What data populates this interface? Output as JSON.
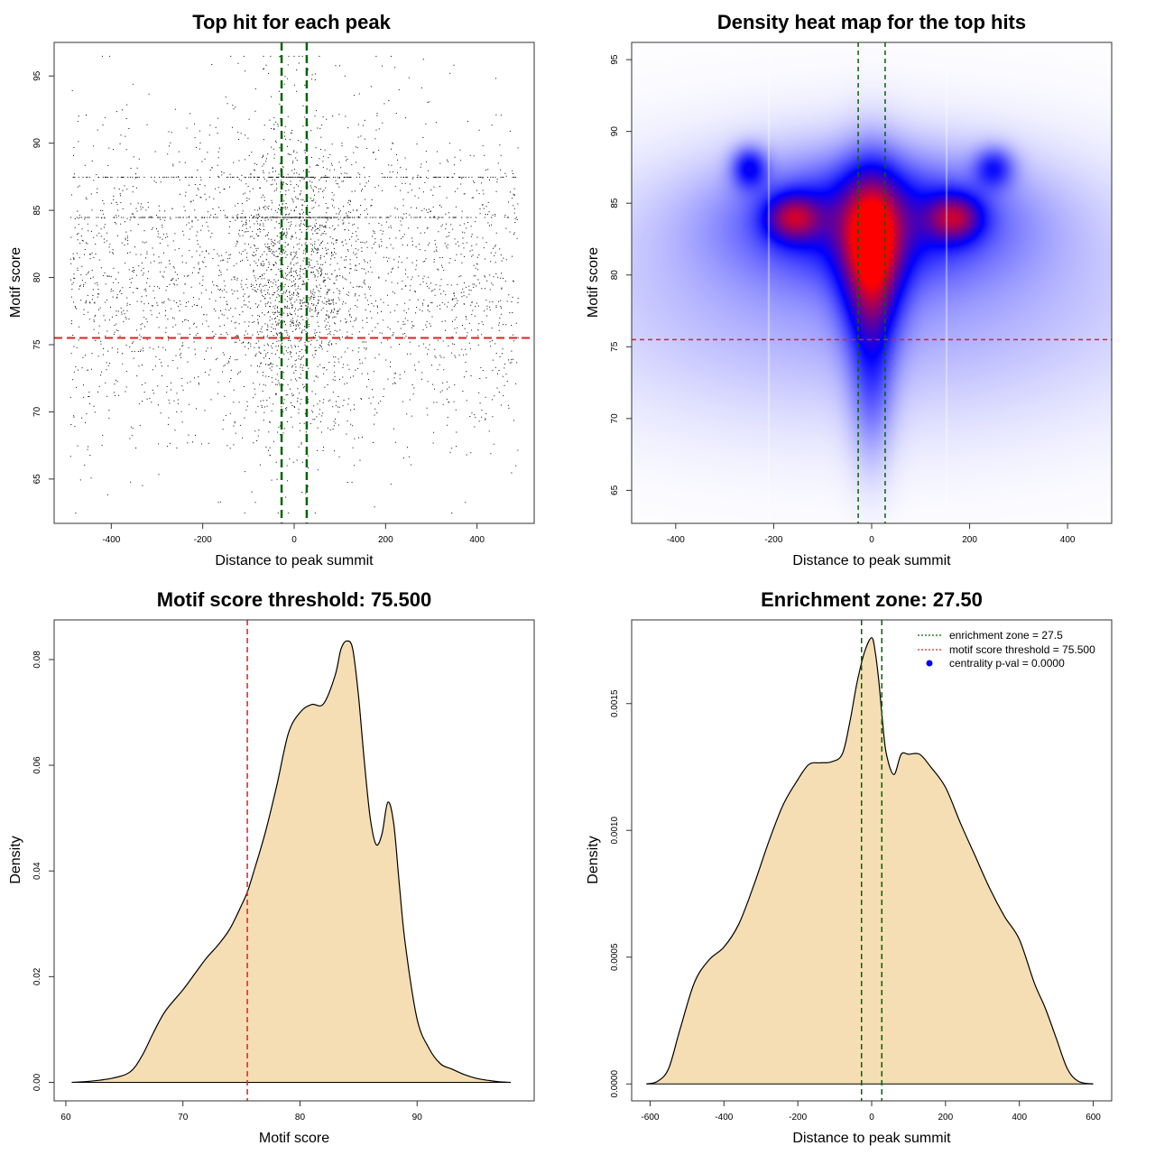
{
  "colors": {
    "threshold_red": "#e02020",
    "zone_green": "#006400",
    "density_fill": "#f5deb3",
    "heat_low": "#ffffff",
    "heat_mid": "#0000ff",
    "heat_high": "#ff0000",
    "pval_blue": "#0000ff"
  },
  "chart_data": [
    {
      "id": "scatter",
      "type": "scatter",
      "title": "Top hit for each peak",
      "xlabel": "Distance to peak summit",
      "ylabel": "Motif score",
      "xlim": [
        -525,
        525
      ],
      "ylim": [
        61.7,
        97.5
      ],
      "xticks": [
        -400,
        -200,
        0,
        200,
        400
      ],
      "yticks": [
        65,
        70,
        75,
        80,
        85,
        90,
        95
      ],
      "threshold_y": 75.5,
      "zone": [
        -27.5,
        27.5
      ],
      "n_points": 4200,
      "x_range": [
        -490,
        490
      ],
      "score_peaks": [
        84.5,
        87.5
      ],
      "score_mean": 80,
      "score_sd": 6
    },
    {
      "id": "heatmap",
      "type": "heatmap",
      "title": "Density heat map for the top hits",
      "xlabel": "Distance to peak summit",
      "ylabel": "Motif score",
      "xlim": [
        -490,
        490
      ],
      "ylim": [
        62.7,
        96.2
      ],
      "xticks": [
        -400,
        -200,
        0,
        200,
        400
      ],
      "yticks": [
        65,
        70,
        75,
        80,
        85,
        90,
        95
      ],
      "threshold_y": 75.5,
      "zone": [
        -27.5,
        27.5
      ],
      "hotspots": [
        {
          "x": 0,
          "y": 83.5,
          "value": 1.0
        },
        {
          "x": -160,
          "y": 84,
          "value": 0.8
        },
        {
          "x": 170,
          "y": 84,
          "value": 0.8
        },
        {
          "x": -250,
          "y": 87.5,
          "value": 0.6
        },
        {
          "x": 250,
          "y": 87.5,
          "value": 0.6
        }
      ]
    },
    {
      "id": "score_density",
      "type": "area",
      "title": "Motif score threshold: 75.500",
      "xlabel": "Motif score",
      "ylabel": "Density",
      "xlim": [
        59,
        100
      ],
      "ylim": [
        -0.0035,
        0.0875
      ],
      "xticks": [
        60,
        70,
        80,
        90
      ],
      "yticks": [
        0.0,
        0.02,
        0.04,
        0.06,
        0.08
      ],
      "ytick_labels": [
        "0.00",
        "0.02",
        "0.04",
        "0.06",
        "0.08"
      ],
      "threshold_x": 75.5,
      "x": [
        60.5,
        62,
        64,
        65.5,
        66.5,
        67.5,
        68.5,
        70,
        71,
        72,
        73,
        74,
        75,
        75.5,
        76,
        77,
        78,
        79,
        80,
        81,
        82,
        83,
        83.5,
        84,
        84.5,
        85,
        85.5,
        86,
        86.5,
        87,
        87.5,
        88,
        88.5,
        89,
        90,
        91,
        92,
        93,
        94,
        95,
        96,
        97,
        98
      ],
      "y": [
        0,
        0.0002,
        0.0008,
        0.002,
        0.005,
        0.0095,
        0.0135,
        0.0175,
        0.0205,
        0.0235,
        0.026,
        0.029,
        0.0335,
        0.036,
        0.0395,
        0.047,
        0.056,
        0.066,
        0.07,
        0.0715,
        0.0716,
        0.077,
        0.082,
        0.0835,
        0.082,
        0.073,
        0.0605,
        0.05,
        0.045,
        0.047,
        0.053,
        0.049,
        0.037,
        0.026,
        0.012,
        0.0065,
        0.0035,
        0.0025,
        0.0015,
        0.0008,
        0.0004,
        0.0001,
        0.0
      ]
    },
    {
      "id": "distance_density",
      "type": "area",
      "title": "Enrichment zone: 27.50",
      "xlabel": "Distance to peak summit",
      "ylabel": "Density",
      "xlim": [
        -650,
        650
      ],
      "ylim": [
        -6.67e-05,
        0.00183
      ],
      "xticks": [
        -600,
        -400,
        -200,
        0,
        200,
        400,
        600
      ],
      "yticks": [
        0.0,
        0.0005,
        0.001,
        0.0015
      ],
      "ytick_labels": [
        "0.0000",
        "0.0005",
        "0.0010",
        "0.0015"
      ],
      "zone": [
        -27.5,
        27.5
      ],
      "x": [
        -610,
        -580,
        -550,
        -520,
        -480,
        -440,
        -400,
        -360,
        -320,
        -280,
        -240,
        -200,
        -170,
        -140,
        -110,
        -80,
        -60,
        -40,
        -20,
        0,
        10,
        20,
        30,
        40,
        60,
        80,
        100,
        130,
        160,
        200,
        240,
        280,
        320,
        360,
        400,
        440,
        470,
        500,
        530,
        560,
        600
      ],
      "y": [
        0.0,
        1e-05,
        6e-05,
        0.00021,
        0.0004,
        0.00049,
        0.00054,
        0.00063,
        0.00078,
        0.00095,
        0.0011,
        0.0012,
        0.00126,
        0.0012664,
        0.00127,
        0.0013,
        0.00142,
        0.00158,
        0.0017,
        0.00176,
        0.0017,
        0.00158,
        0.00142,
        0.0013,
        0.00122,
        0.0013,
        0.0013,
        0.0013,
        0.00125,
        0.00117,
        0.00103,
        0.0009,
        0.00077,
        0.00066,
        0.00057,
        0.0004,
        0.0003,
        0.00018,
        6e-05,
        1e-05,
        0.0
      ]
    }
  ],
  "legend": {
    "zone_label": "enrichment zone = 27.5",
    "threshold_label": "motif score threshold = 75.500",
    "pval_label": "centrality p-val = 0.0000"
  }
}
